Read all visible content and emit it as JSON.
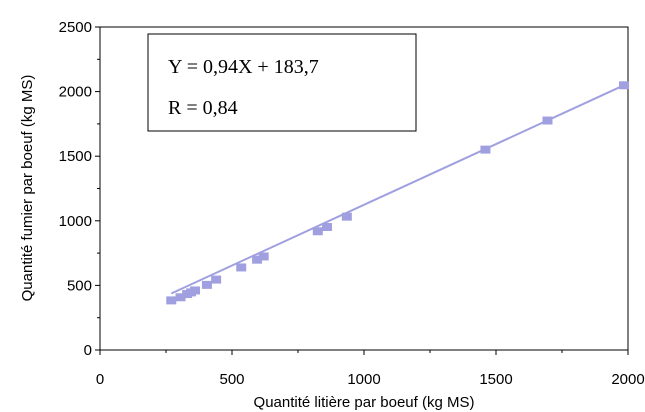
{
  "chart_data": {
    "type": "scatter",
    "xlabel": "Quantité litière par boeuf (kg MS)",
    "ylabel": "Quantité fumier par boeuf (kg MS)",
    "xlim": [
      0,
      2000
    ],
    "ylim": [
      0,
      2500
    ],
    "xticks": [
      0,
      500,
      1000,
      1500,
      2000
    ],
    "yticks": [
      0,
      500,
      1000,
      1500,
      2000,
      2500
    ],
    "grid": false,
    "legend": "none",
    "marker_color": "#a0a0e0",
    "line_color": "#a0a0e0",
    "points": {
      "x": [
        270,
        305,
        330,
        345,
        360,
        405,
        440,
        535,
        595,
        620,
        825,
        860,
        935,
        1460,
        1695,
        1985
      ],
      "y": [
        384,
        408,
        433,
        446,
        461,
        504,
        545,
        639,
        699,
        724,
        919,
        952,
        1032,
        1551,
        1776,
        2049
      ]
    },
    "trendline": {
      "slope": 0.94,
      "intercept": 183.7,
      "x_range": [
        270,
        1985
      ]
    },
    "annotation": {
      "equation": "Y = 0,94X + 183,7",
      "r": "R = 0,84"
    }
  }
}
